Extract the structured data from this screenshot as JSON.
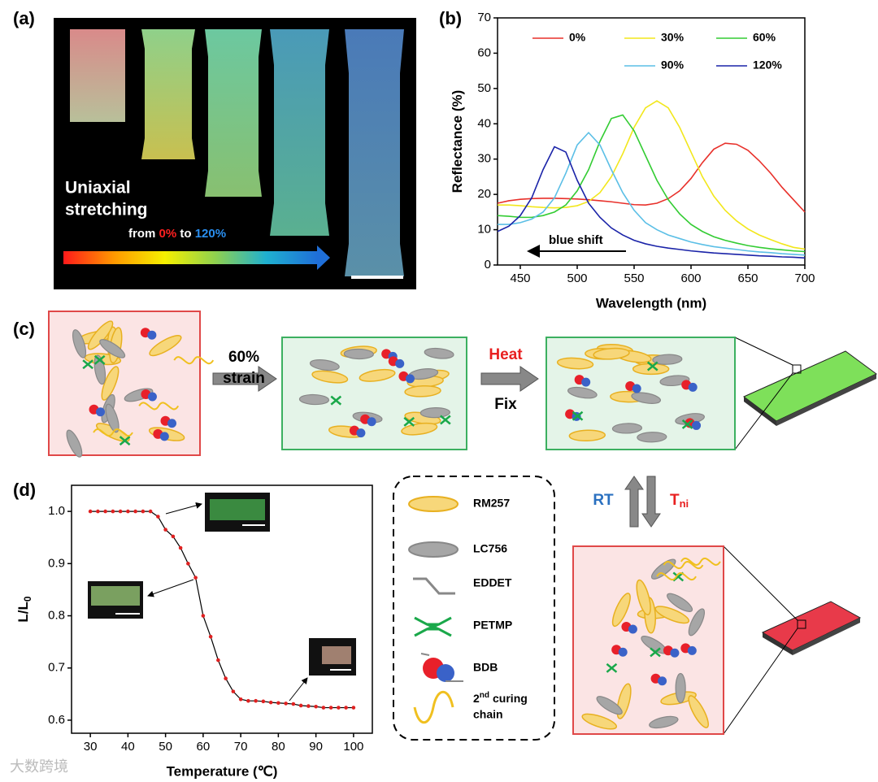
{
  "panel_labels": [
    "(a)",
    "(b)",
    "(c)",
    "(d)"
  ],
  "panel_a": {
    "line1": "Uniaxial",
    "line2": "stretching",
    "from": "from",
    "start": "0%",
    "to": "to",
    "end": "120%"
  },
  "chart_data": [
    {
      "type": "line",
      "x_label": "Wavelength (nm)",
      "y_label": "Reflectance (%)",
      "annotation": "blue shift",
      "xlim": [
        430,
        700
      ],
      "xticks": [
        450,
        500,
        550,
        600,
        650,
        700
      ],
      "ylim": [
        0,
        70
      ],
      "yticks": [
        0,
        10,
        20,
        30,
        40,
        50,
        60,
        70
      ],
      "grid": false,
      "legend": "top",
      "x": [
        430,
        440,
        450,
        460,
        470,
        480,
        490,
        500,
        510,
        520,
        530,
        540,
        550,
        560,
        570,
        580,
        590,
        600,
        610,
        620,
        630,
        640,
        650,
        660,
        670,
        680,
        690,
        700
      ],
      "series": [
        {
          "name": "0%",
          "color": "#e8302a",
          "values": [
            17.5,
            18.2,
            18.6,
            18.8,
            18.9,
            18.9,
            18.8,
            18.7,
            18.5,
            18.2,
            17.9,
            17.5,
            17.1,
            17.0,
            17.5,
            18.8,
            21,
            24.5,
            29,
            32.8,
            34.5,
            34.2,
            32.5,
            29.5,
            26,
            22,
            18.5,
            15
          ]
        },
        {
          "name": "30%",
          "color": "#f2e71c",
          "values": [
            17,
            17,
            16.8,
            16.5,
            16.3,
            16.2,
            16.3,
            16.8,
            18,
            20.5,
            25,
            31.5,
            39,
            44.5,
            46.5,
            44.5,
            39,
            32,
            25,
            19.5,
            15.5,
            12.5,
            10.2,
            8.5,
            7.2,
            6,
            5,
            4.5
          ]
        },
        {
          "name": "60%",
          "color": "#33cc33",
          "values": [
            14,
            13.8,
            13.5,
            13.5,
            14,
            15,
            17,
            21,
            27,
            35,
            41.5,
            42.5,
            38,
            31,
            24,
            18.5,
            14.5,
            11.5,
            9.5,
            8,
            7,
            6.2,
            5.5,
            5,
            4.6,
            4.3,
            4,
            3.8
          ]
        },
        {
          "name": "90%",
          "color": "#5bbfe6",
          "values": [
            11.5,
            11.5,
            12,
            13,
            15,
            19,
            26,
            34,
            37.5,
            34,
            27,
            20.5,
            15.5,
            12,
            10,
            8.5,
            7.5,
            6.5,
            5.8,
            5.2,
            4.8,
            4.4,
            4,
            3.7,
            3.5,
            3.2,
            3,
            2.8
          ]
        },
        {
          "name": "120%",
          "color": "#1a23a8",
          "values": [
            9.5,
            11,
            14,
            19,
            27,
            33.5,
            32,
            24,
            17.5,
            13.5,
            10.5,
            8.5,
            7,
            6,
            5.3,
            4.8,
            4.4,
            4,
            3.7,
            3.4,
            3.2,
            3,
            2.8,
            2.6,
            2.5,
            2.3,
            2.2,
            2
          ]
        }
      ]
    },
    {
      "type": "line",
      "markers": true,
      "x_label": "Temperature (℃)",
      "y_label": "L/L",
      "y_label_sub": "0",
      "xlim": [
        25,
        105
      ],
      "xticks": [
        30,
        40,
        50,
        60,
        70,
        80,
        90,
        100
      ],
      "ylim": [
        0.575,
        1.05
      ],
      "yticks": [
        0.6,
        0.7,
        0.8,
        0.9,
        {
          "value": 1,
          "label": "1.0"
        }
      ],
      "grid": false,
      "x": [
        30,
        32,
        34,
        36,
        38,
        40,
        42,
        44,
        46,
        48,
        50,
        52,
        54,
        56,
        58,
        60,
        62,
        64,
        66,
        68,
        70,
        72,
        74,
        76,
        78,
        80,
        82,
        84,
        86,
        88,
        90,
        92,
        94,
        96,
        98,
        100
      ],
      "series": [
        {
          "color": "#000000",
          "marker_color": "#e02020",
          "values": [
            1,
            1,
            1,
            1,
            1,
            1,
            1,
            1,
            1,
            0.99,
            0.965,
            0.952,
            0.93,
            0.9,
            0.873,
            0.8,
            0.76,
            0.715,
            0.68,
            0.655,
            0.64,
            0.637,
            0.637,
            0.636,
            0.634,
            0.633,
            0.632,
            0.631,
            0.628,
            0.627,
            0.626,
            0.624,
            0.624,
            0.624,
            0.624,
            0.624
          ]
        }
      ]
    }
  ],
  "panel_c": {
    "step1_line1": "60%",
    "step1_line2": "strain",
    "step2_top": "Heat",
    "step2_bottom": "Fix",
    "up": "RT",
    "down": "T",
    "down_sub": "ni"
  },
  "legend_items": [
    {
      "label": "RM257"
    },
    {
      "label": "LC756"
    },
    {
      "label": "EDDET"
    },
    {
      "label": "PETMP"
    },
    {
      "label": "BDB"
    },
    {
      "label": "2",
      "sup": "nd",
      "line1": "curing",
      "line2": "chain"
    }
  ],
  "watermark": "大数跨境"
}
